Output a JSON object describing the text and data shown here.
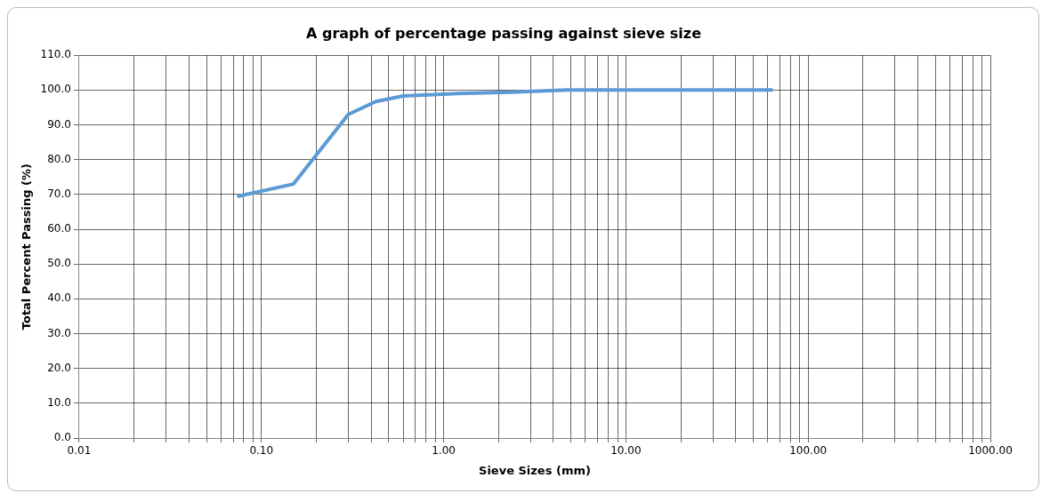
{
  "chart_data": {
    "type": "line",
    "title": "A graph of percentage passing against sieve size",
    "xlabel": "Sieve Sizes (mm)",
    "ylabel": "Total Percent Passing (%)",
    "x": [
      0.075,
      0.15,
      0.3,
      0.425,
      0.6,
      1.18,
      2.36,
      4.75,
      9.5,
      19,
      37.5,
      63
    ],
    "series": [
      {
        "color": "#5b9bd5",
        "values": [
          69.5,
          73,
          93,
          96.7,
          98.3,
          99,
          99.4,
          100,
          100,
          100,
          100,
          100
        ]
      }
    ],
    "log": "x",
    "xlim": [
      0.01,
      1000
    ],
    "ylim": [
      0,
      110
    ],
    "xticks": [
      {
        "value": 0.01,
        "label": "0.01"
      },
      {
        "value": 0.02,
        "label": null
      },
      {
        "value": 0.03,
        "label": null
      },
      {
        "value": 0.04,
        "label": null
      },
      {
        "value": 0.05,
        "label": null
      },
      {
        "value": 0.06,
        "label": null
      },
      {
        "value": 0.07,
        "label": null
      },
      {
        "value": 0.08,
        "label": null
      },
      {
        "value": 0.09,
        "label": null
      },
      {
        "value": 0.1,
        "label": "0.10"
      },
      {
        "value": 0.2,
        "label": null
      },
      {
        "value": 0.3,
        "label": null
      },
      {
        "value": 0.4,
        "label": null
      },
      {
        "value": 0.5,
        "label": null
      },
      {
        "value": 0.6,
        "label": null
      },
      {
        "value": 0.7,
        "label": null
      },
      {
        "value": 0.8,
        "label": null
      },
      {
        "value": 0.9,
        "label": null
      },
      {
        "value": 1,
        "label": "1.00"
      },
      {
        "value": 2,
        "label": null
      },
      {
        "value": 3,
        "label": null
      },
      {
        "value": 4,
        "label": null
      },
      {
        "value": 5,
        "label": null
      },
      {
        "value": 6,
        "label": null
      },
      {
        "value": 7,
        "label": null
      },
      {
        "value": 8,
        "label": null
      },
      {
        "value": 9,
        "label": null
      },
      {
        "value": 10,
        "label": "10.00"
      },
      {
        "value": 20,
        "label": null
      },
      {
        "value": 30,
        "label": null
      },
      {
        "value": 40,
        "label": null
      },
      {
        "value": 50,
        "label": null
      },
      {
        "value": 60,
        "label": null
      },
      {
        "value": 70,
        "label": null
      },
      {
        "value": 80,
        "label": null
      },
      {
        "value": 90,
        "label": null
      },
      {
        "value": 100,
        "label": "100.00"
      },
      {
        "value": 200,
        "label": null
      },
      {
        "value": 300,
        "label": null
      },
      {
        "value": 400,
        "label": null
      },
      {
        "value": 500,
        "label": null
      },
      {
        "value": 600,
        "label": null
      },
      {
        "value": 700,
        "label": null
      },
      {
        "value": 800,
        "label": null
      },
      {
        "value": 900,
        "label": null
      },
      {
        "value": 1000,
        "label": "1000.00"
      }
    ],
    "yticks": [
      {
        "value": 0,
        "label": "0.0"
      },
      {
        "value": 10,
        "label": "10.0"
      },
      {
        "value": 20,
        "label": "20.0"
      },
      {
        "value": 30,
        "label": "30.0"
      },
      {
        "value": 40,
        "label": "40.0"
      },
      {
        "value": 50,
        "label": "50.0"
      },
      {
        "value": 60,
        "label": "60.0"
      },
      {
        "value": 70,
        "label": "70.0"
      },
      {
        "value": 80,
        "label": "80.0"
      },
      {
        "value": 90,
        "label": "90.0"
      },
      {
        "value": 100,
        "label": "100.0"
      },
      {
        "value": 110,
        "label": "110.0"
      }
    ],
    "grid": true,
    "legend": false,
    "marker": "none",
    "line_style": "solid"
  }
}
